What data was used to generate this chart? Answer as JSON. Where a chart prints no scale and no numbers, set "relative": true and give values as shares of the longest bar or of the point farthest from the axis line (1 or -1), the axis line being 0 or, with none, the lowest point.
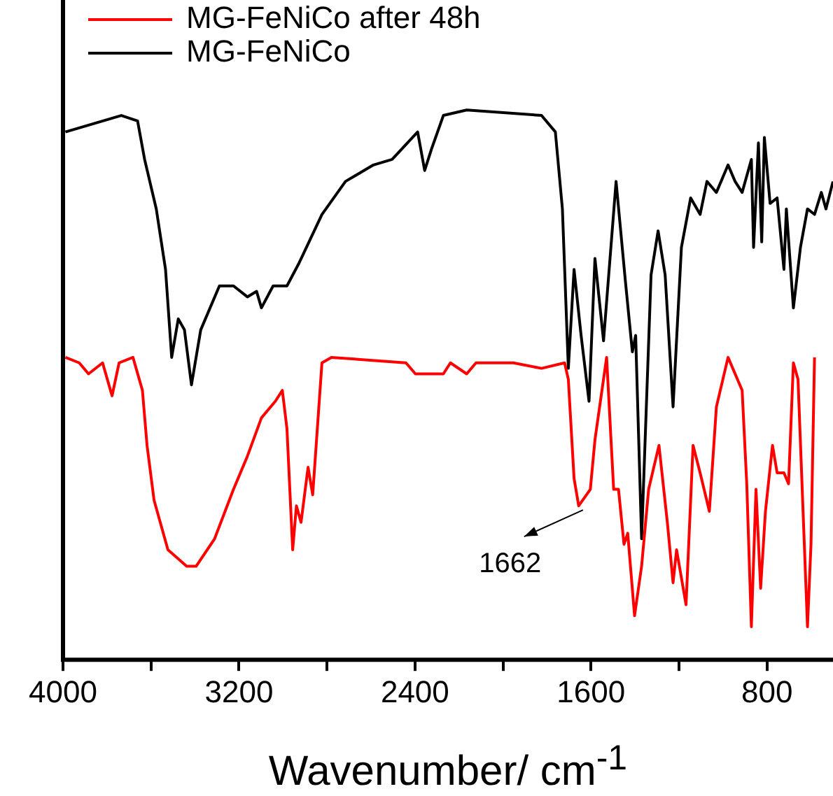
{
  "chart_data": {
    "type": "line",
    "xlabel": "Wavenumber/ cm$^{-1}$",
    "relative": true,
    "xlim": [
      4000,
      500
    ],
    "xticks": [
      4000,
      {
        "value": 3600,
        "label": null
      },
      3200,
      {
        "value": 2800,
        "label": null
      },
      2400,
      {
        "value": 2000,
        "label": null
      },
      1600,
      {
        "value": 1200,
        "label": null
      },
      800
    ],
    "grid": false,
    "legend": "top left",
    "marker": "none",
    "line_style": "solid",
    "annotations": [
      {
        "text": "1662",
        "x": 1662,
        "y": 0.28
      }
    ],
    "series": [
      {
        "name": "MG-FeNiCo after 48h",
        "color": "#ff0000",
        "x": [
          3989,
          3926,
          3884,
          3820,
          3777,
          3745,
          3682,
          3639,
          3618,
          3586,
          3523,
          3438,
          3395,
          3311,
          3225,
          3162,
          3098,
          3035,
          3003,
          2982,
          2956,
          2939,
          2918,
          2886,
          2865,
          2823,
          2780,
          2441,
          2398,
          2271,
          2239,
          2165,
          2123,
          1953,
          1825,
          1720,
          1703,
          1677,
          1656,
          1603,
          1582,
          1529,
          1497,
          1475,
          1450,
          1433,
          1402,
          1370,
          1338,
          1291,
          1253,
          1227,
          1211,
          1168,
          1136,
          1104,
          1062,
          1030,
          977,
          913,
          892,
          871,
          850,
          829,
          807,
          775,
          754,
          723,
          702,
          680,
          659,
          616,
          600,
          584
        ],
        "values": [
          0.55,
          0.54,
          0.52,
          0.54,
          0.48,
          0.54,
          0.55,
          0.49,
          0.39,
          0.29,
          0.2,
          0.17,
          0.17,
          0.22,
          0.31,
          0.37,
          0.44,
          0.47,
          0.49,
          0.42,
          0.2,
          0.28,
          0.25,
          0.35,
          0.3,
          0.54,
          0.55,
          0.54,
          0.52,
          0.52,
          0.54,
          0.52,
          0.54,
          0.54,
          0.53,
          0.54,
          0.51,
          0.33,
          0.28,
          0.31,
          0.4,
          0.55,
          0.31,
          0.31,
          0.21,
          0.23,
          0.08,
          0.17,
          0.31,
          0.39,
          0.25,
          0.14,
          0.2,
          0.1,
          0.39,
          0.34,
          0.27,
          0.46,
          0.55,
          0.49,
          0.32,
          0.06,
          0.31,
          0.13,
          0.27,
          0.39,
          0.34,
          0.34,
          0.32,
          0.54,
          0.51,
          0.06,
          0.21,
          0.55
        ]
      },
      {
        "name": "MG-FeNiCo",
        "color": "#000000",
        "x": [
          3989,
          3735,
          3661,
          3629,
          3576,
          3534,
          3506,
          3476,
          3448,
          3416,
          3374,
          3289,
          3225,
          3162,
          3120,
          3098,
          3045,
          2982,
          2929,
          2823,
          2716,
          2589,
          2504,
          2388,
          2356,
          2324,
          2271,
          2165,
          1825,
          1762,
          1730,
          1703,
          1677,
          1645,
          1609,
          1582,
          1543,
          1486,
          1444,
          1412,
          1397,
          1370,
          1327,
          1295,
          1263,
          1227,
          1189,
          1147,
          1104,
          1073,
          1030,
          977,
          945,
          913,
          871,
          861,
          839,
          824,
          812,
          786,
          754,
          723,
          712,
          680,
          648,
          616,
          584,
          553,
          532,
          500
        ],
        "values": [
          0.96,
          0.99,
          0.98,
          0.91,
          0.82,
          0.71,
          0.55,
          0.62,
          0.6,
          0.5,
          0.6,
          0.68,
          0.68,
          0.66,
          0.67,
          0.64,
          0.68,
          0.68,
          0.72,
          0.81,
          0.87,
          0.9,
          0.91,
          0.96,
          0.89,
          0.93,
          0.99,
          1.0,
          0.99,
          0.96,
          0.82,
          0.53,
          0.71,
          0.59,
          0.47,
          0.73,
          0.58,
          0.87,
          0.69,
          0.56,
          0.59,
          0.22,
          0.7,
          0.78,
          0.7,
          0.46,
          0.75,
          0.84,
          0.81,
          0.87,
          0.85,
          0.9,
          0.87,
          0.85,
          0.91,
          0.75,
          0.94,
          0.76,
          0.95,
          0.83,
          0.84,
          0.71,
          0.82,
          0.64,
          0.75,
          0.82,
          0.81,
          0.85,
          0.82,
          0.87
        ]
      }
    ]
  }
}
